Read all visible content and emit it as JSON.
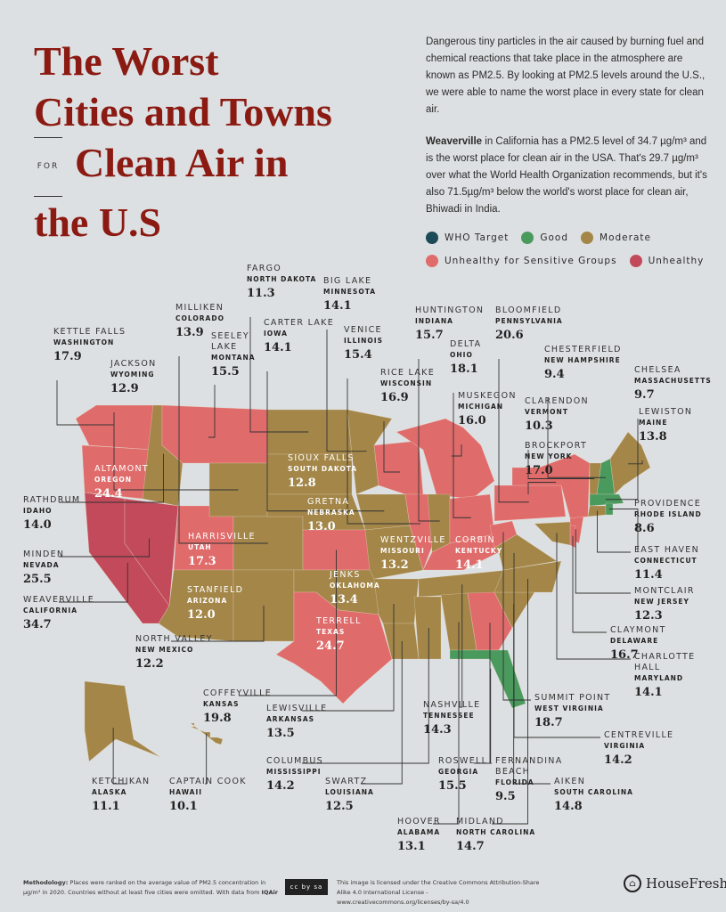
{
  "title": {
    "line1": "The Worst",
    "line2": "Cities and Towns",
    "for": "FOR",
    "line3": "Clean Air in",
    "line4": "the U.S"
  },
  "intro": {
    "p1": "Dangerous tiny particles in the air caused by burning fuel and chemical reactions that take place in the atmosphere are known as PM2.5. By looking at PM2.5 levels around the U.S., we were able to name the worst place in every state for clean air.",
    "p2_bold": "Weaverville",
    "p2": " in California has a PM2.5 level of 34.7 µg/m³ and is the worst place for clean air in the USA. That's 29.7 µg/m³ over what the World Health Organization recommends, but it's also 71.5µg/m³ below the world's worst place for clean air, Bhiwadi in India."
  },
  "legend": [
    {
      "label": "WHO Target",
      "color": "#1d4a57"
    },
    {
      "label": "Good",
      "color": "#4a9a5e"
    },
    {
      "label": "Moderate",
      "color": "#a38648"
    },
    {
      "label": "Unhealthy for Sensitive Groups",
      "color": "#e06b6b"
    },
    {
      "label": "Unhealthy",
      "color": "#c24a5a"
    }
  ],
  "categories": {
    "who": "#1d4a57",
    "good": "#4a9a5e",
    "moderate": "#a38648",
    "usg": "#e06b6b",
    "unhealthy": "#c24a5a"
  },
  "cities": [
    {
      "city": "Fargo",
      "state": "North Dakota",
      "value": "11.3",
      "category": "moderate"
    },
    {
      "city": "Big Lake",
      "state": "Minnesota",
      "value": "14.1",
      "category": "moderate"
    },
    {
      "city": "Milliken",
      "state": "Colorado",
      "value": "13.9",
      "category": "moderate"
    },
    {
      "city": "Carter Lake",
      "state": "Iowa",
      "value": "14.1",
      "category": "moderate"
    },
    {
      "city": "Venice",
      "state": "Illinois",
      "value": "15.4",
      "category": "usg"
    },
    {
      "city": "Huntington",
      "state": "Indiana",
      "value": "15.7",
      "category": "moderate"
    },
    {
      "city": "Bloomfield",
      "state": "Pennsylvania",
      "value": "20.6",
      "category": "usg"
    },
    {
      "city": "Seeley Lake",
      "state": "Montana",
      "value": "15.5",
      "category": "usg"
    },
    {
      "city": "Kettle Falls",
      "state": "Washington",
      "value": "17.9",
      "category": "usg"
    },
    {
      "city": "Jackson",
      "state": "Wyoming",
      "value": "12.9",
      "category": "moderate"
    },
    {
      "city": "Delta",
      "state": "Ohio",
      "value": "18.1",
      "category": "usg"
    },
    {
      "city": "Chesterfield",
      "state": "New Hampshire",
      "value": "9.4",
      "category": "good"
    },
    {
      "city": "Chelsea",
      "state": "Massachusetts",
      "value": "9.7",
      "category": "good"
    },
    {
      "city": "Rice Lake",
      "state": "Wisconsin",
      "value": "16.9",
      "category": "usg"
    },
    {
      "city": "Muskegon",
      "state": "Michigan",
      "value": "16.0",
      "category": "usg"
    },
    {
      "city": "Clarendon",
      "state": "Vermont",
      "value": "10.3",
      "category": "moderate"
    },
    {
      "city": "Lewiston",
      "state": "Maine",
      "value": "13.8",
      "category": "moderate"
    },
    {
      "city": "Brockport",
      "state": "New York",
      "value": "17.0",
      "category": "usg"
    },
    {
      "city": "Sioux Falls",
      "state": "South Dakota",
      "value": "12.8",
      "category": "moderate"
    },
    {
      "city": "Altamont",
      "state": "Oregon",
      "value": "24.4",
      "category": "usg"
    },
    {
      "city": "Rathdrum",
      "state": "Idaho",
      "value": "14.0",
      "category": "moderate"
    },
    {
      "city": "Gretna",
      "state": "Nebraska",
      "value": "13.0",
      "category": "moderate"
    },
    {
      "city": "Providence",
      "state": "Rhode Island",
      "value": "8.6",
      "category": "good"
    },
    {
      "city": "Harrisville",
      "state": "Utah",
      "value": "17.3",
      "category": "usg"
    },
    {
      "city": "Wentzville",
      "state": "Missouri",
      "value": "13.2",
      "category": "moderate"
    },
    {
      "city": "Corbin",
      "state": "Kentucky",
      "value": "14.1",
      "category": "usg"
    },
    {
      "city": "East Haven",
      "state": "Connecticut",
      "value": "11.4",
      "category": "moderate"
    },
    {
      "city": "Minden",
      "state": "Nevada",
      "value": "25.5",
      "category": "unhealthy"
    },
    {
      "city": "Jenks",
      "state": "Oklahoma",
      "value": "13.4",
      "category": "moderate"
    },
    {
      "city": "Stanfield",
      "state": "Arizona",
      "value": "12.0",
      "category": "moderate"
    },
    {
      "city": "Montclair",
      "state": "New Jersey",
      "value": "12.3",
      "category": "usg"
    },
    {
      "city": "Weaverville",
      "state": "California",
      "value": "34.7",
      "category": "unhealthy"
    },
    {
      "city": "Terrell",
      "state": "Texas",
      "value": "24.7",
      "category": "usg"
    },
    {
      "city": "Claymont",
      "state": "Delaware",
      "value": "16.7",
      "category": "usg"
    },
    {
      "city": "North Valley",
      "state": "New Mexico",
      "value": "12.2",
      "category": "moderate"
    },
    {
      "city": "Charlotte Hall",
      "state": "Maryland",
      "value": "14.1",
      "category": "moderate"
    },
    {
      "city": "Coffeyville",
      "state": "Kansas",
      "value": "19.8",
      "category": "usg"
    },
    {
      "city": "Lewisville",
      "state": "Arkansas",
      "value": "13.5",
      "category": "moderate"
    },
    {
      "city": "Nashville",
      "state": "Tennessee",
      "value": "14.3",
      "category": "moderate"
    },
    {
      "city": "Summit Point",
      "state": "West Virginia",
      "value": "18.7",
      "category": "usg"
    },
    {
      "city": "Centreville",
      "state": "Virginia",
      "value": "14.2",
      "category": "moderate"
    },
    {
      "city": "Columbus",
      "state": "Mississippi",
      "value": "14.2",
      "category": "moderate"
    },
    {
      "city": "Roswell",
      "state": "Georgia",
      "value": "15.5",
      "category": "usg"
    },
    {
      "city": "Fernandina Beach",
      "state": "Florida",
      "value": "9.5",
      "category": "good"
    },
    {
      "city": "Ketchikan",
      "state": "Alaska",
      "value": "11.1",
      "category": "moderate"
    },
    {
      "city": "Captain Cook",
      "state": "Hawaii",
      "value": "10.1",
      "category": "moderate"
    },
    {
      "city": "Swartz",
      "state": "Louisiana",
      "value": "12.5",
      "category": "moderate"
    },
    {
      "city": "Aiken",
      "state": "South Carolina",
      "value": "14.8",
      "category": "moderate"
    },
    {
      "city": "Hoover",
      "state": "Alabama",
      "value": "13.1",
      "category": "moderate"
    },
    {
      "city": "Midland",
      "state": "North Carolina",
      "value": "14.7",
      "category": "moderate"
    }
  ],
  "footer": {
    "methodology_label": "Methodology:",
    "methodology": " Places were ranked on the average value of PM2.5 concentration in µg/m³ in 2020. Countries without at least five cities were omitted. With data from ",
    "source": "IQAir",
    "license_badge": "cc by sa",
    "license": "This image is licensed under the Creative Commons Attribution-Share Alike 4.0 International License - www.creativecommons.org/licenses/by-sa/4.0",
    "brand": "HouseFresh"
  }
}
